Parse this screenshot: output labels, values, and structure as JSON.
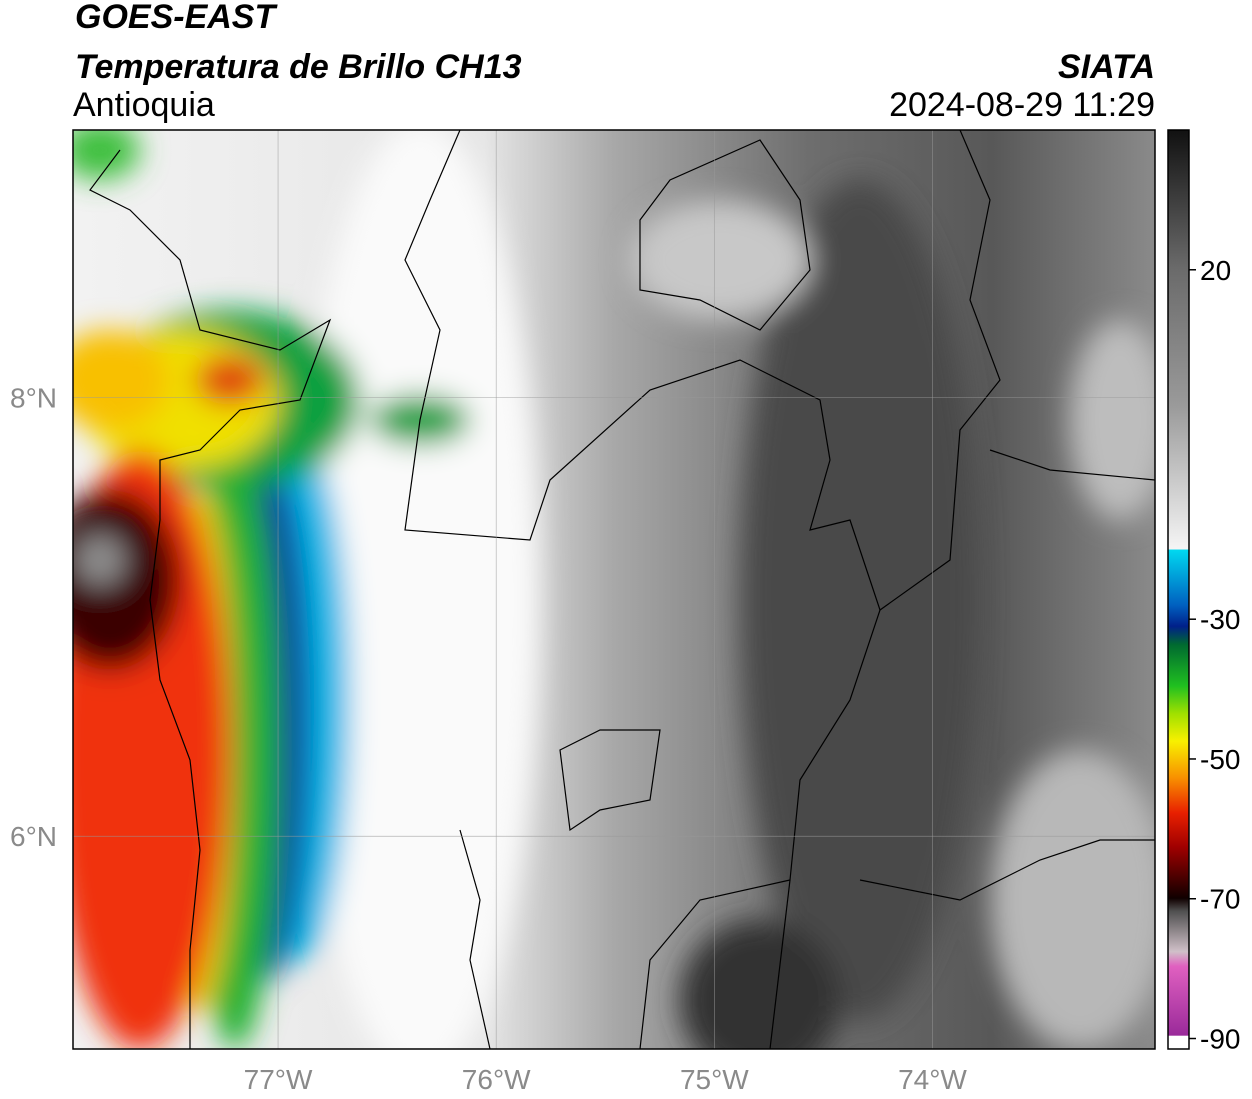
{
  "chart_data": {
    "type": "map",
    "title": "GOES-EAST",
    "subtitle": "Temperatura de Brillo CH13",
    "region": "Antioquia",
    "source": "SIATA",
    "datetime": "2024-08-29 11:29",
    "xlim": [
      -77.94,
      -72.98
    ],
    "ylim": [
      5.03,
      9.22
    ],
    "xticks": [
      {
        "value": -77,
        "label": "77°W"
      },
      {
        "value": -76,
        "label": "76°W"
      },
      {
        "value": -75,
        "label": "75°W"
      },
      {
        "value": -74,
        "label": "74°W"
      }
    ],
    "yticks": [
      {
        "value": 8,
        "label": "8°N"
      },
      {
        "value": 6,
        "label": "6°N"
      }
    ],
    "grid": true,
    "colorbar": {
      "lim": [
        -91.5,
        40
      ],
      "ticks": [
        20,
        -30,
        -50,
        -70,
        -90
      ]
    }
  }
}
